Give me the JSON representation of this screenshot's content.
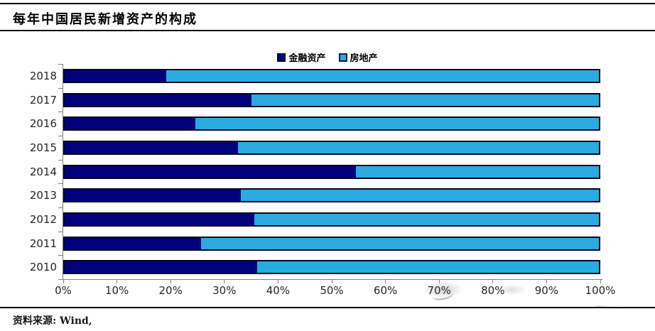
{
  "header": {
    "title": "每年中国居民新增资产的构成"
  },
  "footer": {
    "source_label": "资料来源: Wind,"
  },
  "colors": {
    "financial": "#01017e",
    "real_estate": "#29abe2",
    "axis": "#7f7f7f",
    "rule": "#000000"
  },
  "chart_data": {
    "type": "bar",
    "orientation": "horizontal",
    "stacked": true,
    "unit": "%",
    "title": "每年中国居民新增资产的构成",
    "categories": [
      "2018",
      "2017",
      "2016",
      "2015",
      "2014",
      "2013",
      "2012",
      "2011",
      "2010"
    ],
    "series": [
      {
        "name": "金融资产",
        "color": "#01017e",
        "values": [
          19,
          35,
          24.5,
          32.5,
          54.5,
          33,
          35.5,
          25.5,
          36
        ]
      },
      {
        "name": "房地产",
        "color": "#29abe2",
        "values": [
          81,
          65,
          75.5,
          67.5,
          45.5,
          67,
          64.5,
          74.5,
          64
        ]
      }
    ],
    "xlabel": "",
    "ylabel": "",
    "xlim": [
      0,
      100
    ],
    "x_ticks": [
      "0%",
      "10%",
      "20%",
      "30%",
      "40%",
      "50%",
      "60%",
      "70%",
      "80%",
      "90%",
      "100%"
    ],
    "legend_position": "top-center",
    "grid": false
  }
}
